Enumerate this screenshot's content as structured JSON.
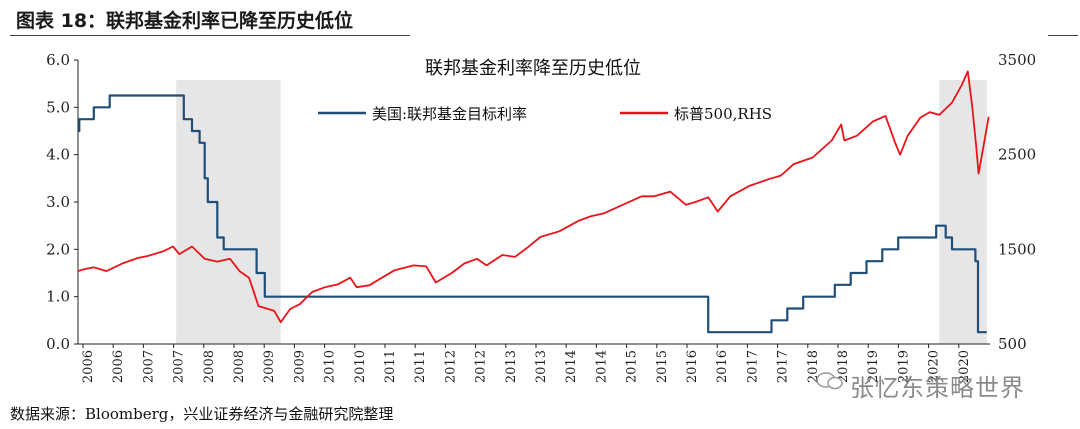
{
  "figure": {
    "caption": "图表 18：联邦基金利率已降至历史低位",
    "source": "数据来源：Bloomberg，兴业证券经济与金融研究院整理",
    "watermark": "张忆东策略世界"
  },
  "chart_data": {
    "type": "line",
    "title": "联邦基金利率降至历史低位",
    "xlabel": "",
    "x_tick_labels": [
      "2006",
      "2006",
      "2007",
      "2007",
      "2008",
      "2008",
      "2009",
      "2009",
      "2010",
      "2010",
      "2011",
      "2011",
      "2012",
      "2012",
      "2013",
      "2013",
      "2014",
      "2014",
      "2015",
      "2015",
      "2016",
      "2016",
      "2017",
      "2017",
      "2018",
      "2018",
      "2019",
      "2019",
      "2020",
      "2020"
    ],
    "y_left": {
      "ticks": [
        "0.0",
        "1.0",
        "2.0",
        "3.0",
        "4.0",
        "5.0",
        "6.0"
      ],
      "range": [
        0,
        6
      ]
    },
    "y_right": {
      "ticks": [
        "500",
        "1500",
        "2500",
        "3500"
      ],
      "range": [
        500,
        3500
      ]
    },
    "shaded_periods": [
      [
        2007.55,
        2009.2
      ],
      [
        2019.6,
        2020.35
      ]
    ],
    "legend_position": "top",
    "series": [
      {
        "name": "美国:联邦基金目标利率",
        "axis": "left",
        "color": "#1f4e79",
        "step": true,
        "x": [
          2006.0,
          2006.02,
          2006.25,
          2006.5,
          2007.6,
          2007.67,
          2007.8,
          2007.92,
          2008.0,
          2008.05,
          2008.2,
          2008.3,
          2008.8,
          2008.82,
          2008.95,
          2015.95,
          2016.95,
          2017.2,
          2017.45,
          2017.95,
          2018.2,
          2018.45,
          2018.7,
          2018.95,
          2019.55,
          2019.7,
          2019.8,
          2020.17,
          2020.21,
          2020.35
        ],
        "values": [
          4.5,
          4.75,
          5.0,
          5.25,
          5.25,
          4.75,
          4.5,
          4.25,
          3.5,
          3.0,
          2.25,
          2.0,
          2.0,
          1.5,
          1.0,
          0.25,
          0.5,
          0.75,
          1.0,
          1.25,
          1.5,
          1.75,
          2.0,
          2.25,
          2.5,
          2.25,
          2.0,
          1.75,
          0.25,
          0.25
        ]
      },
      {
        "name": "标普500,RHS",
        "axis": "right",
        "color": "#e8141a",
        "x": [
          2006.0,
          2006.1,
          2006.25,
          2006.45,
          2006.7,
          2006.95,
          2007.1,
          2007.35,
          2007.5,
          2007.6,
          2007.8,
          2008.0,
          2008.2,
          2008.4,
          2008.55,
          2008.7,
          2008.85,
          2008.95,
          2009.1,
          2009.2,
          2009.35,
          2009.5,
          2009.7,
          2009.9,
          2010.1,
          2010.3,
          2010.4,
          2010.6,
          2010.8,
          2011.0,
          2011.3,
          2011.5,
          2011.65,
          2011.9,
          2012.1,
          2012.3,
          2012.45,
          2012.7,
          2012.9,
          2013.1,
          2013.3,
          2013.6,
          2013.9,
          2014.1,
          2014.3,
          2014.6,
          2014.9,
          2015.1,
          2015.35,
          2015.6,
          2015.75,
          2015.95,
          2016.1,
          2016.3,
          2016.6,
          2016.9,
          2017.1,
          2017.3,
          2017.6,
          2017.9,
          2018.05,
          2018.1,
          2018.3,
          2018.55,
          2018.75,
          2018.9,
          2018.98,
          2019.1,
          2019.3,
          2019.45,
          2019.6,
          2019.8,
          2019.95,
          2020.05,
          2020.12,
          2020.18,
          2020.22,
          2020.3,
          2020.38
        ],
        "values": [
          1270,
          1290,
          1310,
          1270,
          1350,
          1410,
          1430,
          1480,
          1530,
          1450,
          1530,
          1400,
          1370,
          1400,
          1270,
          1200,
          900,
          880,
          850,
          730,
          870,
          920,
          1050,
          1100,
          1130,
          1200,
          1100,
          1120,
          1200,
          1280,
          1330,
          1320,
          1150,
          1250,
          1350,
          1400,
          1330,
          1440,
          1420,
          1520,
          1630,
          1690,
          1800,
          1850,
          1880,
          1970,
          2060,
          2060,
          2110,
          1970,
          2000,
          2050,
          1900,
          2060,
          2170,
          2240,
          2280,
          2400,
          2470,
          2650,
          2820,
          2650,
          2700,
          2850,
          2910,
          2630,
          2500,
          2700,
          2890,
          2950,
          2920,
          3050,
          3230,
          3380,
          3000,
          2600,
          2300,
          2600,
          2900
        ]
      }
    ]
  }
}
